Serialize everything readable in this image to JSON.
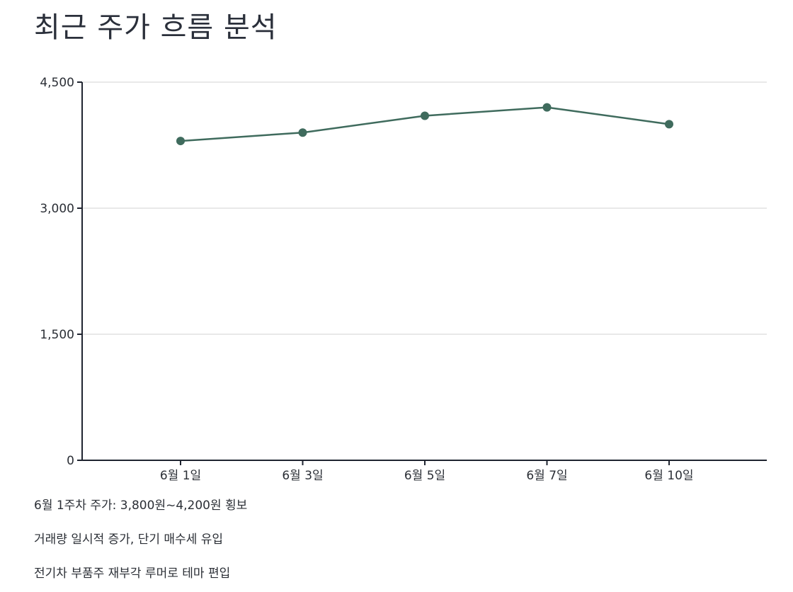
{
  "chart_data": {
    "type": "line",
    "title": "최근 주가 흐름 분석",
    "categories": [
      "6월 1일",
      "6월 3일",
      "6월 5일",
      "6월 7일",
      "6월 10일"
    ],
    "values": [
      3800,
      3900,
      4100,
      4200,
      4000
    ],
    "y_ticks": [
      0,
      1500,
      3000,
      4500
    ],
    "y_tick_labels": [
      "0",
      "1,500",
      "3,000",
      "4,500"
    ],
    "ylim": [
      0,
      4500
    ],
    "grid": true,
    "legend": "none",
    "colors": {
      "line": "#3f6b5d",
      "grid": "#d3d3d3",
      "axis": "#1f2430"
    }
  },
  "notes": [
    "6월 1주차 주가: 3,800원~4,200원 횡보",
    "거래량 일시적 증가, 단기 매수세 유입",
    "전기차 부품주 재부각 루머로 테마 편입"
  ]
}
